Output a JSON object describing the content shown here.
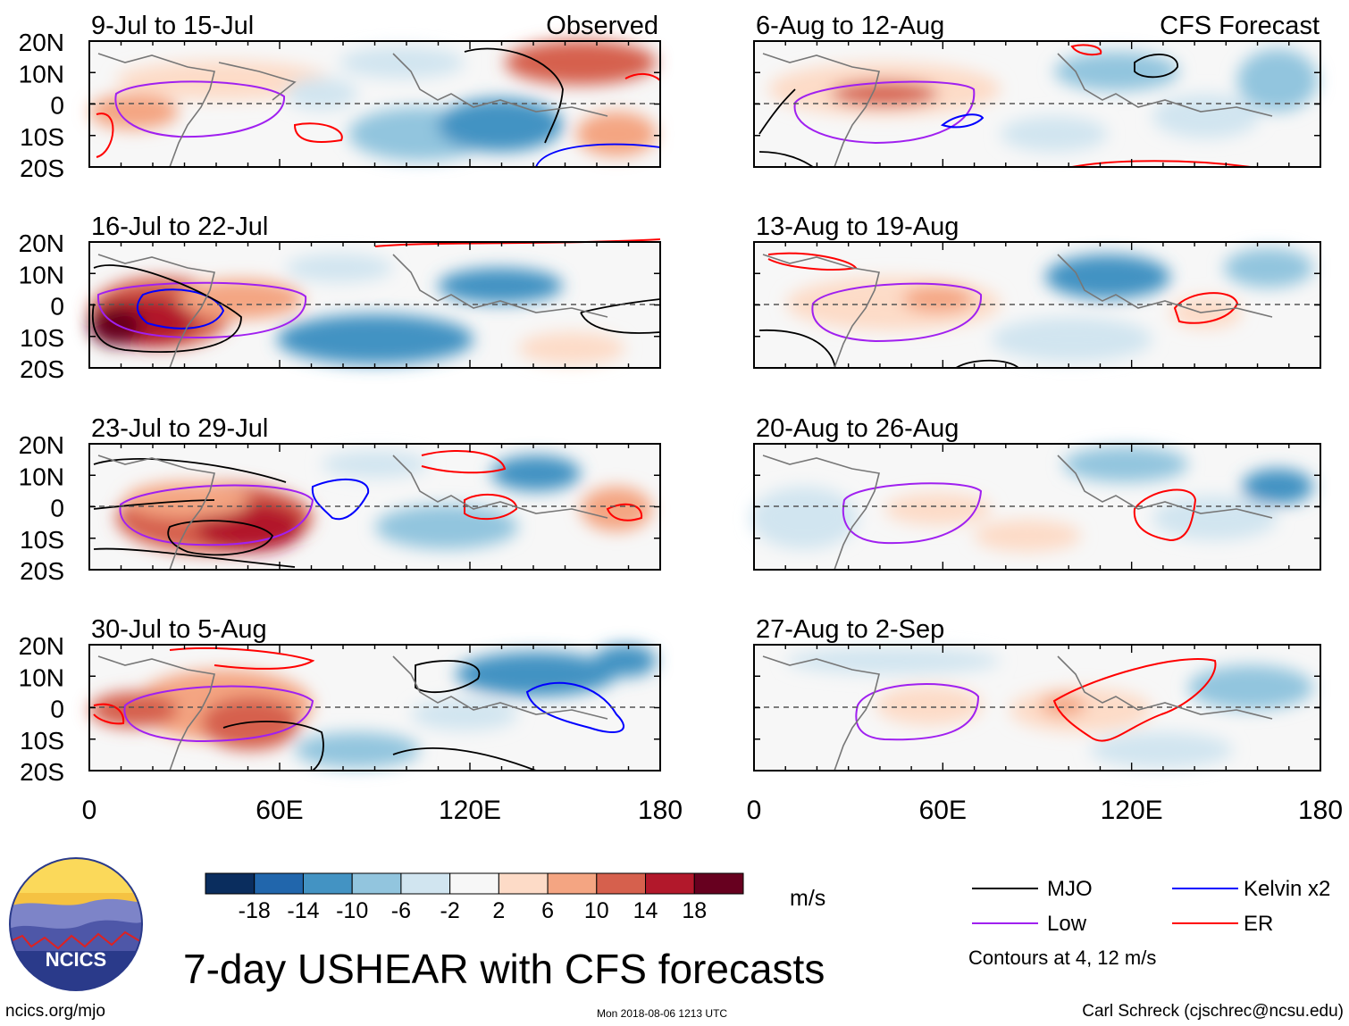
{
  "title": "7-day USHEAR with CFS forecasts",
  "site": "ncics.org/mjo",
  "timestamp": "Mon 2018-08-06 1213 UTC",
  "author": "Carl Schreck (cjschrec@ncsu.edu)",
  "logo_text": "NCICS",
  "column_headers": {
    "observed": "Observed",
    "forecast": "CFS Forecast"
  },
  "panels": {
    "observed": [
      {
        "period": "9-Jul to 15-Jul"
      },
      {
        "period": "16-Jul to 22-Jul"
      },
      {
        "period": "23-Jul to 29-Jul"
      },
      {
        "period": "30-Jul to 5-Aug"
      }
    ],
    "forecast": [
      {
        "period": "6-Aug to 12-Aug"
      },
      {
        "period": "13-Aug to 19-Aug"
      },
      {
        "period": "20-Aug to 26-Aug"
      },
      {
        "period": "27-Aug to 2-Sep"
      }
    ]
  },
  "colorbar": {
    "ticks": [
      "-18",
      "-14",
      "-10",
      "-6",
      "-2",
      "2",
      "6",
      "10",
      "14",
      "18"
    ],
    "colors": [
      "#0a2d5e",
      "#2166ac",
      "#4393c3",
      "#92c5de",
      "#d1e5f0",
      "#f7f7f7",
      "#fddbc7",
      "#f4a582",
      "#d6604d",
      "#b2182b",
      "#67001f"
    ],
    "units": "m/s"
  },
  "legend": {
    "items": [
      {
        "name": "MJO",
        "color": "#000000"
      },
      {
        "name": "Kelvin x2",
        "color": "#0000ff"
      },
      {
        "name": "Low",
        "color": "#a020f0"
      },
      {
        "name": "ER",
        "color": "#ff0000"
      }
    ],
    "note": "Contours at 4, 12 m/s"
  },
  "chart_data": {
    "type": "heatmap",
    "variable": "7-day USHEAR anomaly (m/s)",
    "lon_ticks": [
      "0",
      "60E",
      "120E",
      "180"
    ],
    "lat_ticks": [
      "20N",
      "10N",
      "0",
      "10S",
      "20S"
    ],
    "lon_range": [
      0,
      180
    ],
    "lat_range": [
      -20,
      20
    ],
    "contour_levels": [
      4,
      12
    ],
    "anomaly_features": [
      {
        "panel": "16-Jul to 22-Jul",
        "lon": 30,
        "lat": -5,
        "value": 18
      },
      {
        "panel": "23-Jul to 29-Jul",
        "lon": 50,
        "lat": -7,
        "value": 18
      },
      {
        "panel": "13-Aug to 19-Aug",
        "lon": 120,
        "lat": 12,
        "value": -14
      },
      {
        "panel": "20-Aug to 26-Aug",
        "lon": 168,
        "lat": 7,
        "value": -14
      }
    ]
  }
}
